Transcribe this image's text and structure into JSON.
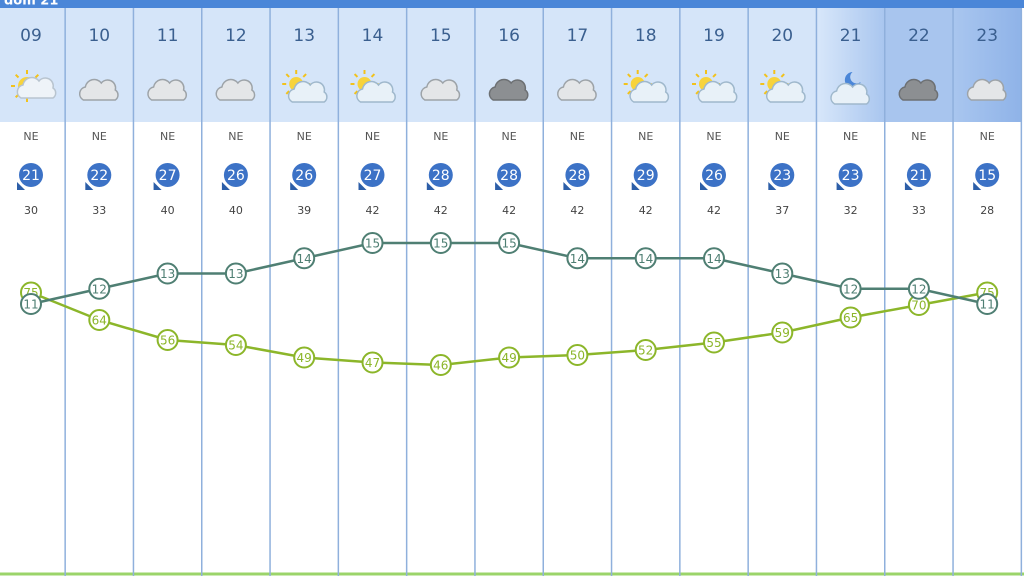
{
  "date": "dom 21",
  "hours": [
    "09",
    "10",
    "11",
    "12",
    "13",
    "14",
    "15",
    "16",
    "17",
    "18",
    "19",
    "20",
    "21",
    "22",
    "23"
  ],
  "wind_dir": [
    "NE",
    "NE",
    "NE",
    "NE",
    "NE",
    "NE",
    "NE",
    "NE",
    "NE",
    "NE",
    "NE",
    "NE",
    "NE",
    "NE",
    "NE"
  ],
  "wind": [
    21,
    22,
    27,
    26,
    26,
    27,
    28,
    28,
    28,
    29,
    26,
    23,
    23,
    21,
    15
  ],
  "gust": [
    30,
    33,
    40,
    40,
    39,
    42,
    42,
    42,
    42,
    42,
    42,
    37,
    32,
    33,
    28
  ],
  "temperature": [
    11,
    12,
    13,
    13,
    14,
    15,
    15,
    15,
    14,
    14,
    14,
    13,
    12,
    12,
    11
  ],
  "humidity": [
    75,
    64,
    56,
    54,
    49,
    47,
    46,
    49,
    50,
    52,
    55,
    59,
    65,
    70,
    75
  ]
}
